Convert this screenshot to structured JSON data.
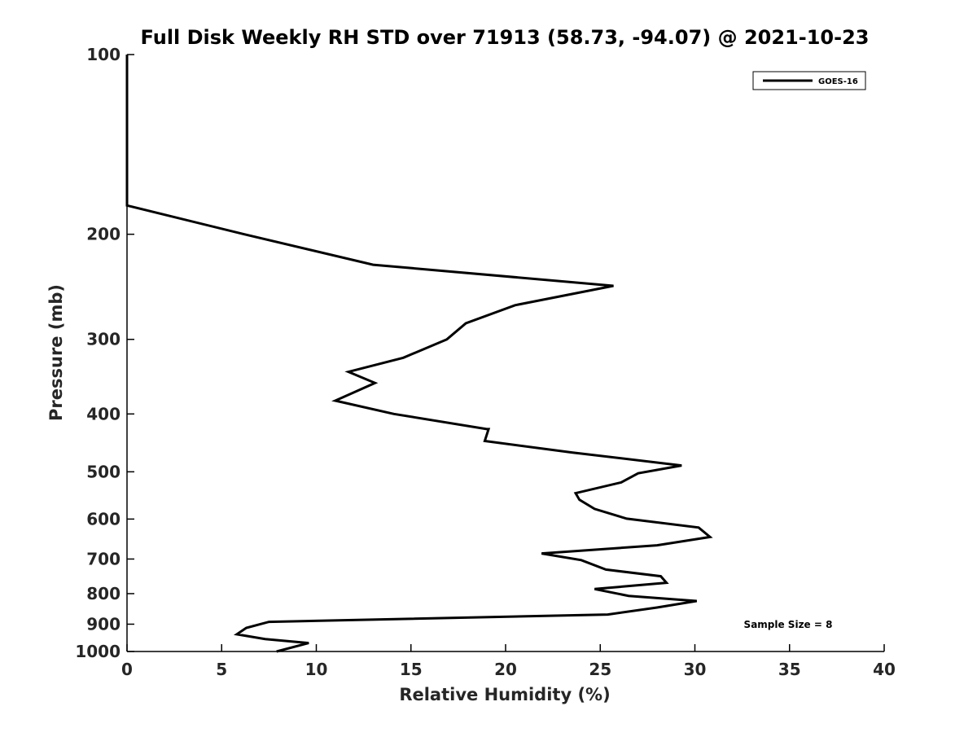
{
  "chart_data": {
    "type": "line",
    "title": "Full Disk Weekly RH STD over 71913 (58.73, -94.07) @ 2021-10-23",
    "xlabel": "Relative Humidity (%)",
    "ylabel": "Pressure (mb)",
    "xlim": [
      0,
      40
    ],
    "ylim": [
      100,
      1000
    ],
    "y_scale": "log",
    "y_reversed": true,
    "xticks": [
      "0",
      "5",
      "10",
      "15",
      "20",
      "25",
      "30",
      "35",
      "40"
    ],
    "yticks": [
      "100",
      "200",
      "300",
      "400",
      "500",
      "600",
      "700",
      "800",
      "900",
      "1000"
    ],
    "grid": false,
    "legend_position": "top-right",
    "annotation": "Sample Size = 8",
    "series": [
      {
        "name": "GOES-16",
        "color": "#000000",
        "points": [
          [
            0,
            100
          ],
          [
            0,
            179
          ],
          [
            6.2,
            200
          ],
          [
            13.0,
            225
          ],
          [
            25.7,
            244
          ],
          [
            20.5,
            263
          ],
          [
            17.9,
            282
          ],
          [
            16.9,
            300
          ],
          [
            14.6,
            322
          ],
          [
            11.7,
            340
          ],
          [
            13.1,
            355
          ],
          [
            11.0,
            380
          ],
          [
            14.1,
            400
          ],
          [
            19.0,
            424
          ],
          [
            19.1,
            424
          ],
          [
            18.9,
            444
          ],
          [
            23.5,
            464
          ],
          [
            29.3,
            488
          ],
          [
            27.0,
            503
          ],
          [
            26.1,
            521
          ],
          [
            23.7,
            543
          ],
          [
            23.9,
            557
          ],
          [
            24.7,
            577
          ],
          [
            26.4,
            599
          ],
          [
            30.2,
            620
          ],
          [
            30.8,
            643
          ],
          [
            28.0,
            664
          ],
          [
            21.9,
            685
          ],
          [
            24.0,
            703
          ],
          [
            25.3,
            729
          ],
          [
            28.2,
            748
          ],
          [
            28.5,
            767
          ],
          [
            24.7,
            786
          ],
          [
            26.5,
            807
          ],
          [
            30.1,
            823
          ],
          [
            28.0,
            844
          ],
          [
            25.4,
            867
          ],
          [
            7.5,
            892
          ],
          [
            6.3,
            913
          ],
          [
            5.8,
            936
          ],
          [
            7.3,
            953
          ],
          [
            9.6,
            968
          ],
          [
            7.9,
            1000
          ]
        ]
      }
    ]
  }
}
